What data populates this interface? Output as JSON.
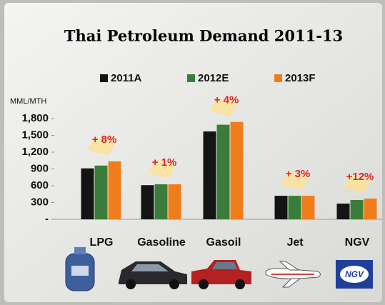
{
  "chart_data": {
    "type": "bar",
    "title": "Thai Petroleum Demand 2011-13",
    "y_axis_label": "MML/MTH",
    "categories": [
      "LPG",
      "Gasoline",
      "Gasoil",
      "Jet",
      "NGV"
    ],
    "series": [
      {
        "name": "2011A",
        "color": "#141414",
        "values": [
          910,
          610,
          1570,
          420,
          280
        ]
      },
      {
        "name": "2012E",
        "color": "#3a7d3a",
        "values": [
          960,
          625,
          1690,
          420,
          345
        ]
      },
      {
        "name": "2013F",
        "color": "#f07d1c",
        "values": [
          1035,
          625,
          1740,
          420,
          370
        ]
      }
    ],
    "annotations": [
      "+ 8%",
      "+ 1%",
      "+ 4%",
      "+ 3%",
      "+12%"
    ],
    "ylim": [
      0,
      1800
    ],
    "yticks": [
      {
        "value": 0,
        "label": "-"
      },
      300,
      600,
      900,
      {
        "value": 1200,
        "label": "1,200"
      },
      {
        "value": 1500,
        "label": "1,500"
      },
      {
        "value": 1800,
        "label": "1,800"
      }
    ],
    "grid": false
  }
}
